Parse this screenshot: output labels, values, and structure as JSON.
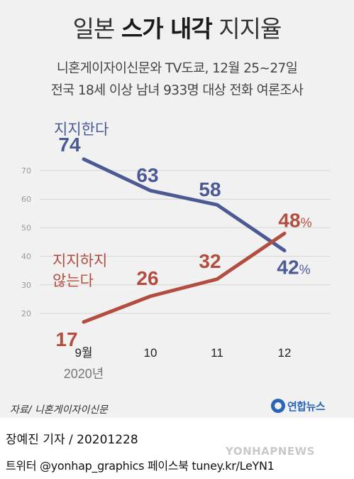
{
  "header": {
    "title_pre": "일본 ",
    "title_bold": "스가 내각",
    "title_post": " 지지율",
    "subtitle_line1": "니혼게이자이신문와 TV도쿄, 12월 25~27일",
    "subtitle_line2": "전국 18세 이상 남녀 933명 대상 전화 여론조사"
  },
  "chart_data": {
    "type": "line",
    "categories": [
      "9월",
      "10",
      "11",
      "12"
    ],
    "year_label": "2020년",
    "ylim": [
      20,
      70
    ],
    "yticks": [
      20,
      30,
      40,
      50,
      60,
      70
    ],
    "series": [
      {
        "name": "지지한다",
        "values": [
          74,
          63,
          58,
          42
        ],
        "color": "#4c5a94",
        "value_labels": [
          "74",
          "63",
          "58",
          "42"
        ],
        "last_suffix": "%"
      },
      {
        "name": "지지하지 않는다",
        "name_line1": "지지하지",
        "name_line2": "않는다",
        "values": [
          17,
          26,
          32,
          48
        ],
        "color": "#b34d40",
        "value_labels": [
          "17",
          "26",
          "32",
          "48"
        ],
        "last_suffix": "%"
      }
    ]
  },
  "footer": {
    "source": "자료/ 니혼게이자이신문",
    "logo_text": "연합뉴스",
    "reporter": "장예진 기자 / 20201228",
    "watermark": "YONHAPNEWS",
    "social": "트위터 @yonhap_graphics  페이스북 tuney.kr/LeYN1"
  },
  "colors": {
    "support": "#4c5a94",
    "oppose": "#b34d40",
    "background": "#f1f1f1",
    "logo": "#2a64b8"
  }
}
